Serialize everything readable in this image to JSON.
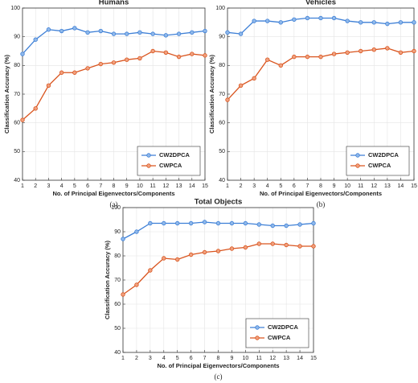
{
  "chart_data": [
    {
      "type": "line",
      "title": "Humans",
      "caption": "(a)",
      "x_label": "No. of Principal Eigenvectors/Components",
      "y_label": "Classification Accuracy (%)",
      "x": [
        1,
        2,
        3,
        4,
        5,
        6,
        7,
        8,
        9,
        10,
        11,
        12,
        13,
        14,
        15
      ],
      "series": [
        {
          "name": "CW2DPCA",
          "color": "#3d7fd6",
          "values": [
            84,
            89,
            92.5,
            92,
            93,
            91.5,
            92,
            91,
            91,
            91.5,
            91,
            90.5,
            91,
            91.5,
            92
          ]
        },
        {
          "name": "CWPCA",
          "color": "#d9541e",
          "values": [
            61,
            65,
            73,
            77.5,
            77.5,
            79,
            80.5,
            81,
            82,
            82.5,
            85,
            84.5,
            83,
            84,
            83.5
          ]
        }
      ],
      "xlim": [
        1,
        15
      ],
      "xticks": [
        1,
        2,
        3,
        4,
        5,
        6,
        7,
        8,
        9,
        10,
        11,
        12,
        13,
        14,
        15
      ],
      "ylim": [
        40,
        100
      ],
      "yticks": [
        40,
        50,
        60,
        70,
        80,
        90,
        100
      ],
      "grid": true,
      "legend": "lower right"
    },
    {
      "type": "line",
      "title": "Vehicles",
      "caption": "(b)",
      "x_label": "No. of Principal Eigenvectors/Components",
      "y_label": "Classification Accuracy (%)",
      "x": [
        1,
        2,
        3,
        4,
        5,
        6,
        7,
        8,
        9,
        10,
        11,
        12,
        13,
        14,
        15
      ],
      "series": [
        {
          "name": "CW2DPCA",
          "color": "#3d7fd6",
          "values": [
            91.5,
            91,
            95.5,
            95.5,
            95,
            96,
            96.5,
            96.5,
            96.5,
            95.5,
            95,
            95,
            94.5,
            95,
            95
          ]
        },
        {
          "name": "CWPCA",
          "color": "#d9541e",
          "values": [
            68,
            73,
            75.5,
            82,
            80,
            83,
            83,
            83,
            84,
            84.5,
            85,
            85.5,
            86,
            84.5,
            85
          ]
        }
      ],
      "xlim": [
        1,
        15
      ],
      "xticks": [
        1,
        2,
        3,
        4,
        5,
        6,
        7,
        8,
        9,
        10,
        11,
        12,
        13,
        14,
        15
      ],
      "ylim": [
        40,
        100
      ],
      "yticks": [
        40,
        50,
        60,
        70,
        80,
        90,
        100
      ],
      "grid": true,
      "legend": "lower right"
    },
    {
      "type": "line",
      "title": "Total Objects",
      "caption": "(c)",
      "x_label": "No. of Principal Eigenvectors/Components",
      "y_label": "Classification Accuracy (%)",
      "x": [
        1,
        2,
        3,
        4,
        5,
        6,
        7,
        8,
        9,
        10,
        11,
        12,
        13,
        14,
        15
      ],
      "series": [
        {
          "name": "CW2DPCA",
          "color": "#3d7fd6",
          "values": [
            87,
            90,
            93.5,
            93.5,
            93.5,
            93.5,
            94,
            93.5,
            93.5,
            93.5,
            93,
            92.5,
            92.5,
            93,
            93.5
          ]
        },
        {
          "name": "CWPCA",
          "color": "#d9541e",
          "values": [
            64,
            68,
            74,
            79,
            78.5,
            80.5,
            81.5,
            82,
            83,
            83.5,
            85,
            85,
            84.5,
            84,
            84
          ]
        }
      ],
      "xlim": [
        1,
        15
      ],
      "xticks": [
        1,
        2,
        3,
        4,
        5,
        6,
        7,
        8,
        9,
        10,
        11,
        12,
        13,
        14,
        15
      ],
      "ylim": [
        40,
        100
      ],
      "yticks": [
        40,
        50,
        60,
        70,
        80,
        90,
        100
      ],
      "grid": true,
      "legend": "lower right"
    }
  ]
}
